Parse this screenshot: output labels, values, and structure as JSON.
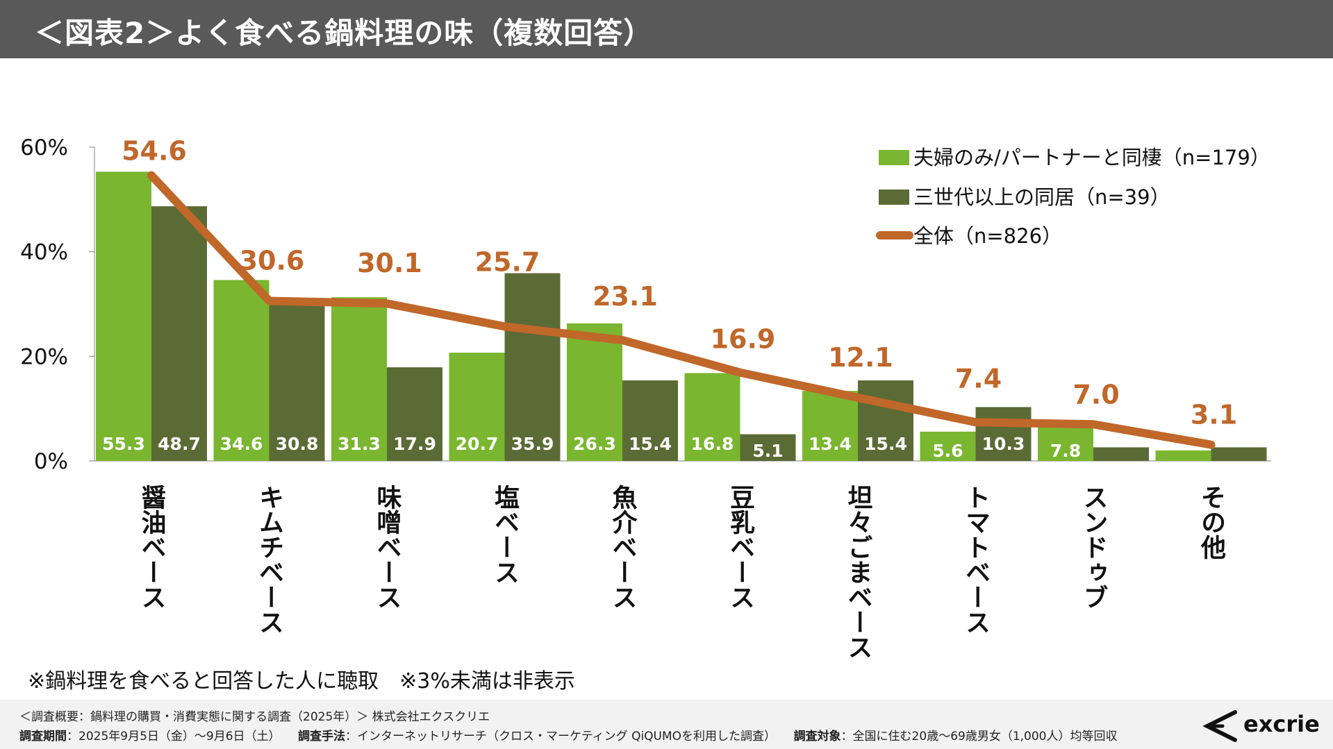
{
  "header": {
    "title": "＜図表2＞よく食べる鍋料理の味（複数回答）"
  },
  "chart_data": {
    "type": "bar",
    "title": "＜図表2＞よく食べる鍋料理の味（複数回答）",
    "categories": [
      "醤油ベース",
      "キムチベース",
      "味噌ベース",
      "塩ベース",
      "魚介ベース",
      "豆乳ベース",
      "坦々ごまベース",
      "トマトベース",
      "スンドゥブ",
      "その他"
    ],
    "series": [
      {
        "name": "夫婦のみ/パートナーと同棲（n=179）",
        "kind": "bar",
        "color": "#7ab630",
        "values": [
          55.3,
          34.6,
          31.3,
          20.7,
          26.3,
          16.8,
          13.4,
          5.6,
          7.8,
          2.0
        ],
        "labels": [
          "55.3",
          "34.6",
          "31.3",
          "20.7",
          "26.3",
          "16.8",
          "13.4",
          "5.6",
          "7.8",
          ""
        ]
      },
      {
        "name": "三世代以上の同居（n=39）",
        "kind": "bar",
        "color": "#5b6b35",
        "values": [
          48.7,
          30.8,
          17.9,
          35.9,
          15.4,
          5.1,
          15.4,
          10.3,
          2.6,
          2.6
        ],
        "labels": [
          "48.7",
          "30.8",
          "17.9",
          "35.9",
          "15.4",
          "5.1",
          "15.4",
          "10.3",
          "",
          ""
        ]
      },
      {
        "name": "全体（n=826）",
        "kind": "line",
        "color": "#c0672a",
        "values": [
          54.6,
          30.6,
          30.1,
          25.7,
          23.1,
          16.9,
          12.1,
          7.4,
          7.0,
          3.1
        ],
        "labels": [
          "54.6",
          "30.6",
          "30.1",
          "25.7",
          "23.1",
          "16.9",
          "12.1",
          "7.4",
          "7.0",
          "3.1"
        ]
      }
    ],
    "yticks": [
      "0%",
      "20%",
      "40%",
      "60%"
    ],
    "ylim": [
      0,
      60
    ],
    "legend_position": "top-right"
  },
  "note": "※鍋料理を食べると回答した人に聴取　※3%未満は非表示",
  "footer": {
    "line1": "＜調査概要：鍋料理の購買・消費実態に関する調査（2025年）＞ 株式会社エクスクリエ",
    "period_label": "調査期間",
    "period_value": "：2025年9月5日（金）～9月6日（土）",
    "method_label": "調査手法",
    "method_value": "：インターネットリサーチ（クロス・マーケティング QiQUMOを利用した調査）",
    "target_label": "調査対象",
    "target_value": "：全国に住む20歳～69歳男女（1,000人）均等回収"
  },
  "logo": {
    "text": "excrie"
  }
}
